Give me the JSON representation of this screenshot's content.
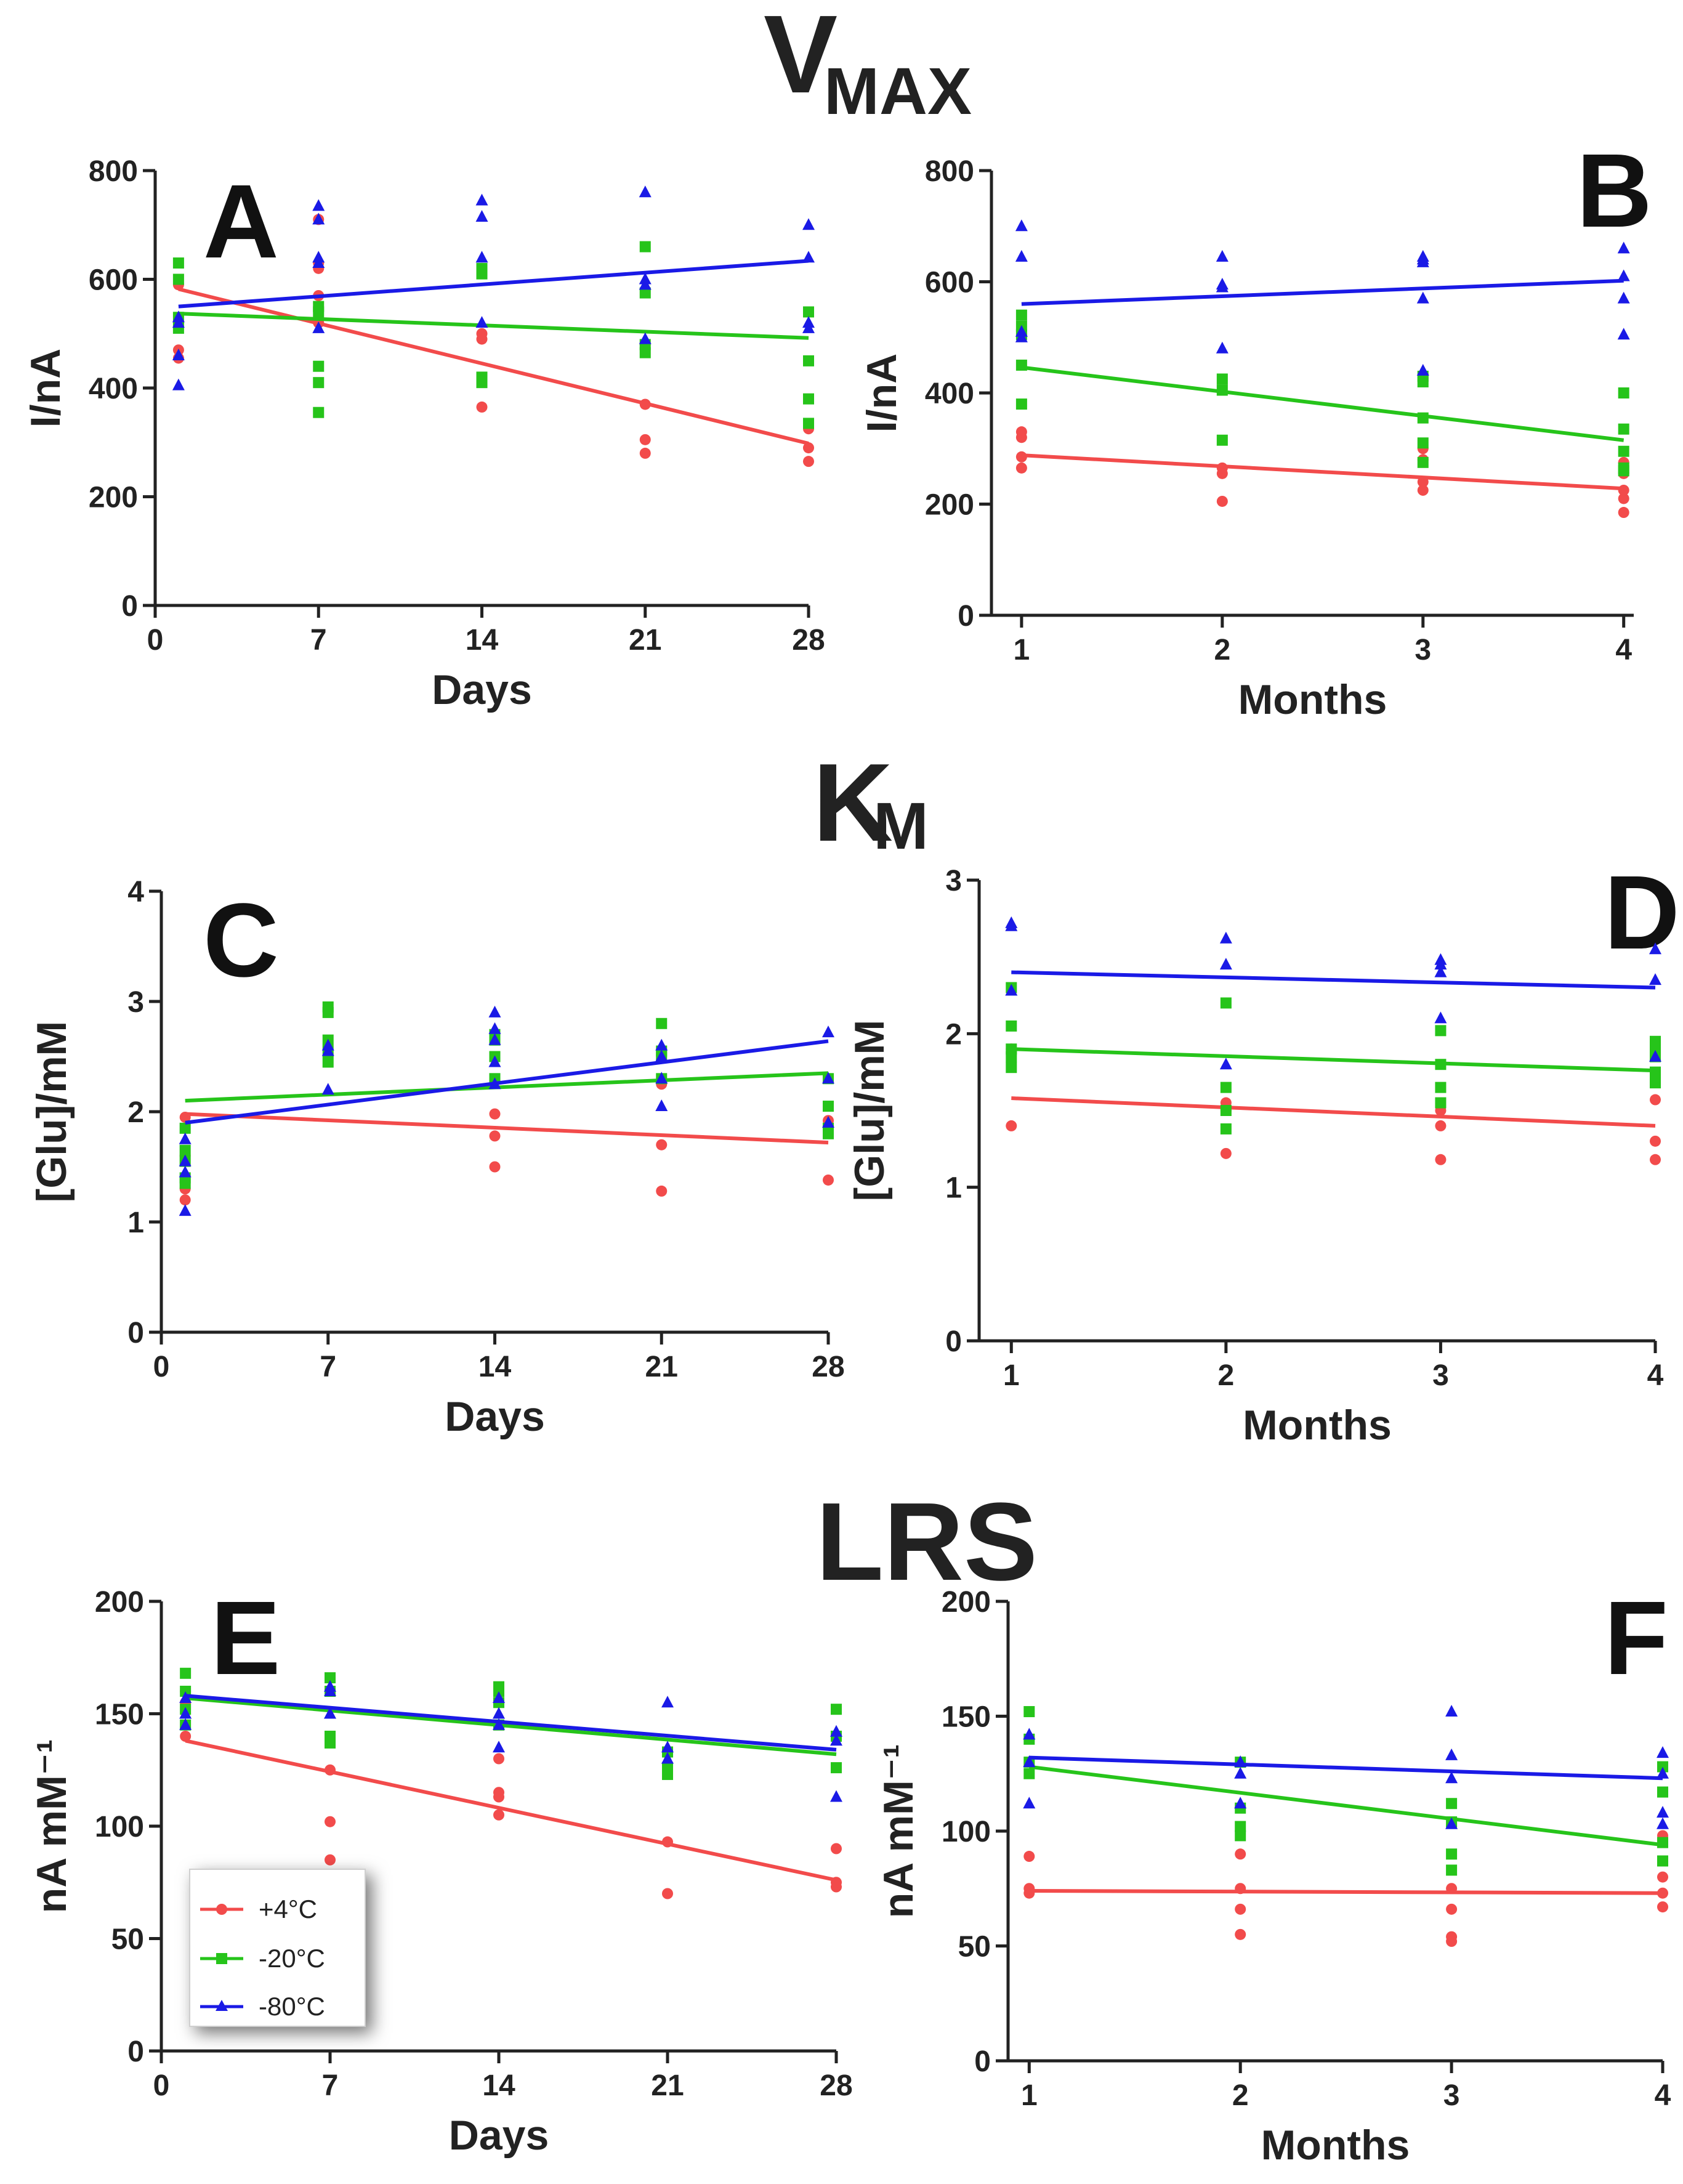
{
  "sections": {
    "vmax": {
      "main": "V",
      "sub": "MAX"
    },
    "km": {
      "main": "K",
      "sub": "M"
    },
    "lrs": {
      "main": "LRS"
    }
  },
  "legend": [
    {
      "label": "+4°C",
      "color": "#f24b4b",
      "marker": "circle"
    },
    {
      "label": "-20°C",
      "color": "#26c41a",
      "marker": "square"
    },
    {
      "label": "-80°C",
      "color": "#1a1ae6",
      "marker": "triangle"
    }
  ],
  "chart_data": [
    {
      "panel": "A",
      "type": "scatter",
      "xlabel": "Days",
      "ylabel": "I/nA",
      "xlim": [
        0,
        28
      ],
      "ylim": [
        0,
        800
      ],
      "xticks": [
        0,
        7,
        14,
        21,
        28
      ],
      "yticks": [
        0,
        200,
        400,
        600,
        800
      ],
      "series": [
        {
          "name": "+4°C",
          "x": [
            1,
            1,
            1,
            1,
            7,
            7,
            7,
            7,
            7,
            14,
            14,
            14,
            14,
            21,
            21,
            21,
            21,
            28,
            28,
            28,
            28
          ],
          "y": [
            455,
            470,
            520,
            590,
            520,
            570,
            620,
            630,
            710,
            365,
            490,
            500,
            620,
            280,
            305,
            370,
            480,
            265,
            290,
            325,
            330
          ],
          "fit": [
            [
              1,
              582
            ],
            [
              28,
              298
            ]
          ]
        },
        {
          "name": "-20°C",
          "x": [
            1,
            1,
            1,
            1,
            7,
            7,
            7,
            7,
            7,
            14,
            14,
            14,
            14,
            21,
            21,
            21,
            21,
            28,
            28,
            28,
            28
          ],
          "y": [
            510,
            530,
            600,
            630,
            355,
            410,
            440,
            540,
            550,
            410,
            420,
            610,
            620,
            465,
            480,
            575,
            660,
            335,
            380,
            450,
            540
          ],
          "fit": [
            [
              1,
              537
            ],
            [
              28,
              492
            ]
          ]
        },
        {
          "name": "-80°C",
          "x": [
            1,
            1,
            1,
            1,
            7,
            7,
            7,
            7,
            7,
            14,
            14,
            14,
            14,
            21,
            21,
            21,
            21,
            28,
            28,
            28,
            28
          ],
          "y": [
            405,
            460,
            520,
            530,
            510,
            630,
            640,
            710,
            735,
            520,
            640,
            715,
            745,
            490,
            590,
            600,
            760,
            510,
            520,
            640,
            700
          ],
          "fit": [
            [
              1,
              550
            ],
            [
              28,
              634
            ]
          ]
        }
      ]
    },
    {
      "panel": "B",
      "type": "scatter",
      "xlabel": "Months",
      "ylabel": "I/nA",
      "xlim": [
        0.85,
        4.05
      ],
      "ylim": [
        0,
        800
      ],
      "xticks": [
        1,
        2,
        3,
        4
      ],
      "yticks": [
        0,
        200,
        400,
        600,
        800
      ],
      "series": [
        {
          "name": "+4°C",
          "x": [
            1,
            1,
            1,
            1,
            2,
            2,
            2,
            3,
            3,
            3,
            3,
            4,
            4,
            4,
            4,
            4
          ],
          "y": [
            265,
            285,
            320,
            330,
            205,
            255,
            265,
            225,
            240,
            280,
            300,
            185,
            210,
            225,
            255,
            275
          ],
          "fit": [
            [
              1,
              288
            ],
            [
              4,
              228
            ]
          ]
        },
        {
          "name": "-20°C",
          "x": [
            1,
            1,
            1,
            1,
            1,
            2,
            2,
            2,
            3,
            3,
            3,
            3,
            3,
            4,
            4,
            4,
            4,
            4
          ],
          "y": [
            380,
            450,
            505,
            520,
            540,
            315,
            405,
            425,
            275,
            310,
            355,
            420,
            430,
            265,
            295,
            335,
            400,
            260
          ],
          "fit": [
            [
              1,
              446
            ],
            [
              4,
              315
            ]
          ]
        },
        {
          "name": "-80°C",
          "x": [
            1,
            1,
            1,
            1,
            2,
            2,
            2,
            2,
            3,
            3,
            3,
            3,
            3,
            4,
            4,
            4,
            4
          ],
          "y": [
            645,
            700,
            510,
            500,
            480,
            590,
            595,
            645,
            440,
            570,
            640,
            645,
            635,
            505,
            570,
            660,
            610
          ],
          "fit": [
            [
              1,
              560
            ],
            [
              4,
              602
            ]
          ]
        }
      ]
    },
    {
      "panel": "C",
      "type": "scatter",
      "xlabel": "Days",
      "ylabel": "[Glu]/mM",
      "xlim": [
        0,
        28
      ],
      "ylim": [
        0,
        4
      ],
      "xticks": [
        0,
        7,
        14,
        21,
        28
      ],
      "yticks": [
        0,
        1,
        2,
        3,
        4
      ],
      "series": [
        {
          "name": "+4°C",
          "x": [
            1,
            1,
            1,
            1,
            14,
            14,
            14,
            21,
            21,
            21,
            28,
            28
          ],
          "y": [
            1.2,
            1.3,
            1.6,
            1.95,
            1.5,
            1.78,
            1.98,
            1.28,
            1.7,
            2.25,
            1.38,
            1.92
          ],
          "fit": [
            [
              1,
              1.98
            ],
            [
              28,
              1.72
            ]
          ]
        },
        {
          "name": "-20°C",
          "x": [
            1,
            1,
            1,
            1,
            1,
            7,
            7,
            7,
            7,
            7,
            14,
            14,
            14,
            14,
            21,
            21,
            21,
            21,
            28,
            28,
            28,
            28
          ],
          "y": [
            1.35,
            1.4,
            1.55,
            1.65,
            1.85,
            2.45,
            2.55,
            2.65,
            2.9,
            2.95,
            2.3,
            2.5,
            2.65,
            2.7,
            2.3,
            2.5,
            2.55,
            2.8,
            1.8,
            1.85,
            2.05,
            2.3
          ],
          "fit": [
            [
              1,
              2.1
            ],
            [
              28,
              2.35
            ]
          ]
        },
        {
          "name": "-80°C",
          "x": [
            1,
            1,
            1,
            1,
            7,
            7,
            7,
            14,
            14,
            14,
            14,
            14,
            21,
            21,
            21,
            21,
            28,
            28,
            28
          ],
          "y": [
            1.1,
            1.45,
            1.55,
            1.75,
            2.2,
            2.55,
            2.6,
            2.25,
            2.45,
            2.65,
            2.75,
            2.9,
            2.05,
            2.3,
            2.5,
            2.6,
            1.9,
            2.3,
            2.72
          ],
          "fit": [
            [
              1,
              1.9
            ],
            [
              28,
              2.64
            ]
          ]
        }
      ]
    },
    {
      "panel": "D",
      "type": "scatter",
      "xlabel": "Months",
      "ylabel": "[Glu]/mM",
      "xlim": [
        0.85,
        4.0
      ],
      "ylim": [
        0,
        3
      ],
      "xticks": [
        1,
        2,
        3,
        4
      ],
      "yticks": [
        0,
        1,
        2,
        3
      ],
      "series": [
        {
          "name": "+4°C",
          "x": [
            1,
            1,
            2,
            2,
            2,
            3,
            3,
            3,
            4,
            4,
            4
          ],
          "y": [
            1.4,
            1.9,
            1.22,
            1.5,
            1.55,
            1.18,
            1.4,
            1.5,
            1.18,
            1.3,
            1.57
          ],
          "fit": [
            [
              1,
              1.58
            ],
            [
              4,
              1.4
            ]
          ]
        },
        {
          "name": "-20°C",
          "x": [
            1,
            1,
            1,
            1,
            1,
            2,
            2,
            2,
            2,
            3,
            3,
            3,
            3,
            4,
            4,
            4,
            4,
            4
          ],
          "y": [
            1.78,
            1.85,
            1.9,
            2.05,
            2.3,
            1.38,
            1.5,
            1.65,
            2.2,
            1.55,
            1.65,
            1.8,
            2.02,
            1.68,
            1.75,
            1.85,
            1.9,
            1.95
          ],
          "fit": [
            [
              1,
              1.9
            ],
            [
              4,
              1.76
            ]
          ]
        },
        {
          "name": "-80°C",
          "x": [
            1,
            1,
            1,
            2,
            2,
            2,
            3,
            3,
            3,
            3,
            4,
            4,
            4
          ],
          "y": [
            2.28,
            2.7,
            2.72,
            1.8,
            2.45,
            2.62,
            2.1,
            2.4,
            2.45,
            2.48,
            1.85,
            2.35,
            2.55
          ],
          "fit": [
            [
              1,
              2.4
            ],
            [
              4,
              2.3
            ]
          ]
        }
      ]
    },
    {
      "panel": "E",
      "type": "scatter",
      "xlabel": "Days",
      "ylabel": "nA mM⁻¹",
      "xlim": [
        0,
        28
      ],
      "ylim": [
        0,
        200
      ],
      "xticks": [
        0,
        7,
        14,
        21,
        28
      ],
      "yticks": [
        0,
        50,
        100,
        150,
        200
      ],
      "series": [
        {
          "name": "+4°C",
          "x": [
            1,
            1,
            1,
            7,
            7,
            7,
            14,
            14,
            14,
            14,
            21,
            21,
            28,
            28,
            28
          ],
          "y": [
            140,
            155,
            160,
            85,
            102,
            125,
            105,
            113,
            115,
            130,
            70,
            93,
            73,
            75,
            90
          ],
          "fit": [
            [
              1,
              138
            ],
            [
              28,
              76
            ]
          ]
        },
        {
          "name": "-20°C",
          "x": [
            1,
            1,
            1,
            1,
            7,
            7,
            7,
            7,
            14,
            14,
            14,
            14,
            21,
            21,
            21,
            28,
            28,
            28
          ],
          "y": [
            145,
            152,
            160,
            168,
            137,
            140,
            160,
            166,
            145,
            155,
            160,
            162,
            123,
            126,
            133,
            126,
            140,
            152
          ],
          "fit": [
            [
              1,
              157
            ],
            [
              28,
              132
            ]
          ]
        },
        {
          "name": "-80°C",
          "x": [
            1,
            1,
            1,
            7,
            7,
            7,
            14,
            14,
            14,
            14,
            21,
            21,
            21,
            28,
            28,
            28
          ],
          "y": [
            145,
            150,
            157,
            150,
            160,
            162,
            135,
            145,
            150,
            157,
            130,
            135,
            155,
            113,
            138,
            142
          ],
          "fit": [
            [
              1,
              158
            ],
            [
              28,
              134
            ]
          ]
        }
      ]
    },
    {
      "panel": "F",
      "type": "scatter",
      "xlabel": "Months",
      "ylabel": "nA mM⁻¹",
      "xlim": [
        0.9,
        4.0
      ],
      "ylim": [
        0,
        200
      ],
      "xticks": [
        1,
        2,
        3,
        4
      ],
      "yticks": [
        0,
        50,
        100,
        150,
        200
      ],
      "series": [
        {
          "name": "+4°C",
          "x": [
            1,
            1,
            1,
            2,
            2,
            2,
            2,
            3,
            3,
            3,
            3,
            4,
            4,
            4,
            4
          ],
          "y": [
            73,
            75,
            89,
            55,
            66,
            75,
            90,
            52,
            54,
            66,
            75,
            67,
            73,
            80,
            98
          ],
          "fit": [
            [
              1,
              74
            ],
            [
              4,
              73
            ]
          ]
        },
        {
          "name": "-20°C",
          "x": [
            1,
            1,
            1,
            1,
            2,
            2,
            2,
            2,
            3,
            3,
            3,
            3,
            4,
            4,
            4,
            4
          ],
          "y": [
            125,
            130,
            140,
            152,
            98,
            102,
            110,
            130,
            83,
            90,
            104,
            112,
            87,
            95,
            117,
            128
          ],
          "fit": [
            [
              1,
              128
            ],
            [
              4,
              94
            ]
          ]
        },
        {
          "name": "-80°C",
          "x": [
            1,
            1,
            1,
            2,
            2,
            2,
            3,
            3,
            3,
            3,
            4,
            4,
            4,
            4
          ],
          "y": [
            112,
            130,
            142,
            112,
            125,
            130,
            103,
            123,
            133,
            152,
            103,
            108,
            125,
            134
          ],
          "fit": [
            [
              1,
              132
            ],
            [
              4,
              123
            ]
          ]
        }
      ]
    }
  ]
}
